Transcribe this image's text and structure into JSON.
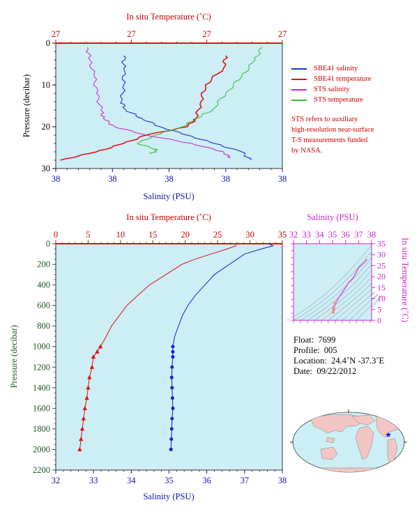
{
  "top_panel": {
    "temp_axis_title": "In situ Temperature (˚C)",
    "sal_axis_title": "Salinity (PSU)",
    "pressure_axis_title": "Pressure (decibar)",
    "temp_ticks": [
      "27",
      "27",
      "27",
      "27"
    ],
    "sal_ticks": [
      "38",
      "38",
      "38",
      "38",
      "38"
    ],
    "pressure_ticks": [
      "0",
      "10",
      "20",
      "30"
    ]
  },
  "legend": {
    "items": [
      {
        "label": "SBE41 salinity",
        "color": "#2233cc"
      },
      {
        "label": "SBE41 temperature",
        "color": "#dd1111"
      },
      {
        "label": "STS salinity",
        "color": "#cc22cc"
      },
      {
        "label": "STS temperature",
        "color": "#33bb33"
      }
    ]
  },
  "note": {
    "line1": "STS refers to auxiliary",
    "line2": "high-resolution near-surface",
    "line3": "T-S measurements funded",
    "line4": "by NASA."
  },
  "main_panel": {
    "temp_axis_title": "In situ Temperature (˚C)",
    "sal_axis_title": "Salinity (PSU)",
    "pressure_axis_title": "Pressure (decibar)",
    "temp_ticks": [
      "0",
      "5",
      "10",
      "15",
      "20",
      "25",
      "30",
      "35"
    ],
    "sal_ticks": [
      "32",
      "33",
      "34",
      "35",
      "36",
      "37",
      "38"
    ],
    "pressure_ticks": [
      "0",
      "200",
      "400",
      "600",
      "800",
      "1000",
      "1200",
      "1400",
      "1600",
      "1800",
      "2000",
      "2200"
    ]
  },
  "ts_panel": {
    "sal_axis_title": "Salinity (PSU)",
    "temp_axis_title": "In situ Temperature (˚C)",
    "sal_ticks": [
      "32",
      "33",
      "34",
      "35",
      "36",
      "37",
      "38"
    ],
    "temp_ticks": [
      "0",
      "5",
      "10",
      "15",
      "20",
      "25",
      "30",
      "35"
    ]
  },
  "float_info": {
    "float_label": "Float:",
    "float_value": "7699",
    "profile_label": "Profile:",
    "profile_value": "005",
    "location_label": "Location:",
    "location_value": "24.4˚N  -37.3˚E",
    "date_label": "Date:",
    "date_value": "09/22/2012"
  },
  "colors": {
    "plot_bg": "#cdeef5",
    "temperature": "#dd1111",
    "salinity": "#1122cc",
    "sts_salinity": "#cc22cc",
    "sts_temperature": "#33bb33",
    "ts_axis": "#cc22cc"
  },
  "chart_data": [
    {
      "type": "line",
      "name": "near-surface profile",
      "ylabel": "Pressure (decibar)",
      "ylim": [
        0,
        30
      ],
      "series": [
        {
          "name": "SBE41 salinity",
          "pressure": [
            3,
            6,
            10,
            14,
            16,
            18,
            20,
            22,
            24,
            26,
            28
          ],
          "x_frac": [
            0.3,
            0.3,
            0.3,
            0.29,
            0.31,
            0.38,
            0.46,
            0.58,
            0.7,
            0.82,
            0.86
          ]
        },
        {
          "name": "SBE41 temperature",
          "pressure": [
            3,
            6,
            10,
            14,
            18,
            20,
            22,
            24,
            26,
            28
          ],
          "x_frac": [
            0.75,
            0.74,
            0.66,
            0.64,
            0.62,
            0.58,
            0.4,
            0.3,
            0.18,
            0.02
          ]
        },
        {
          "name": "STS salinity",
          "pressure": [
            1,
            4,
            8,
            12,
            16,
            18,
            20,
            22,
            24,
            26,
            27.5
          ],
          "x_frac": [
            0.14,
            0.15,
            0.17,
            0.18,
            0.2,
            0.21,
            0.26,
            0.4,
            0.6,
            0.74,
            0.77
          ]
        },
        {
          "name": "STS temperature",
          "pressure": [
            1,
            4,
            8,
            12,
            16,
            18,
            20,
            22,
            24,
            25.5,
            26.5
          ],
          "x_frac": [
            0.91,
            0.88,
            0.82,
            0.75,
            0.69,
            0.62,
            0.56,
            0.44,
            0.36,
            0.45,
            0.42
          ]
        }
      ]
    },
    {
      "type": "line",
      "name": "full profile",
      "xlabel_top": "In situ Temperature (˚C)",
      "xlabel_bottom": "Salinity (PSU)",
      "ylabel": "Pressure (decibar)",
      "temp_lim": [
        0,
        35
      ],
      "sal_lim": [
        32,
        38
      ],
      "ylim": [
        0,
        2200
      ],
      "series": [
        {
          "name": "temperature",
          "pressure": [
            0,
            20,
            50,
            100,
            150,
            200,
            300,
            400,
            500,
            600,
            700,
            800,
            900,
            1000,
            1050,
            1100,
            1200,
            1300,
            1400,
            1500,
            1600,
            1700,
            1800,
            1900,
            2000
          ],
          "values": [
            27.9,
            27.8,
            26.5,
            24.0,
            21.5,
            19.5,
            17.0,
            14.5,
            12.7,
            11.0,
            9.8,
            8.6,
            7.8,
            6.9,
            6.4,
            5.8,
            5.6,
            5.2,
            5.0,
            4.8,
            4.5,
            4.3,
            4.1,
            3.9,
            3.7
          ]
        },
        {
          "name": "salinity",
          "pressure": [
            0,
            20,
            50,
            100,
            150,
            200,
            250,
            300,
            400,
            500,
            600,
            700,
            800,
            900,
            1000,
            1100,
            1200,
            1300,
            1400,
            1500,
            1600,
            1700,
            1800,
            1900,
            2000
          ],
          "values": [
            37.65,
            37.75,
            37.45,
            37.0,
            36.8,
            36.6,
            36.4,
            36.2,
            35.95,
            35.7,
            35.5,
            35.35,
            35.25,
            35.15,
            35.1,
            35.1,
            35.08,
            35.07,
            35.08,
            35.09,
            35.1,
            35.08,
            35.07,
            35.06,
            35.05
          ]
        }
      ],
      "sampled_pressures": [
        1000,
        1050,
        1100,
        1200,
        1300,
        1400,
        1500,
        1600,
        1700,
        1800,
        1900,
        2000
      ]
    },
    {
      "type": "scatter",
      "name": "T-S diagram",
      "xlabel": "Salinity (PSU)",
      "ylabel": "In situ Temperature (˚C)",
      "xlim": [
        32,
        38
      ],
      "ylim": [
        0,
        35
      ],
      "series": [
        {
          "name": "T-S",
          "salinity": [
            37.65,
            37.45,
            37.0,
            36.6,
            36.2,
            35.9,
            35.6,
            35.4,
            35.2,
            35.1,
            35.08,
            35.05
          ],
          "temperature": [
            27.9,
            26.5,
            24.0,
            19.5,
            17.0,
            14.0,
            11.5,
            9.5,
            7.8,
            6.0,
            5.0,
            3.7
          ]
        }
      ]
    }
  ]
}
